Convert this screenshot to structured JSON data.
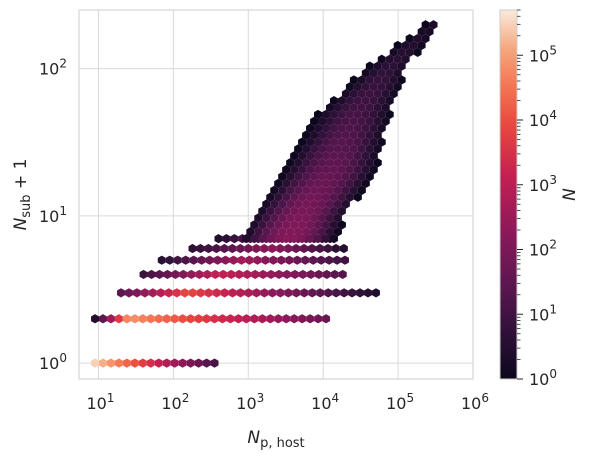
{
  "chart_data": {
    "type": "hexbin",
    "x_scale": "log",
    "y_scale": "log",
    "xlabel": "N_p, host",
    "ylabel": "N_sub + 1",
    "xlim": [
      5.5,
      1000000
    ],
    "ylim": [
      0.78,
      250
    ],
    "grid": true,
    "x_ticks": [
      {
        "value": 10,
        "base": "10",
        "exp": "1"
      },
      {
        "value": 100,
        "base": "10",
        "exp": "2"
      },
      {
        "value": 1000,
        "base": "10",
        "exp": "3"
      },
      {
        "value": 10000,
        "base": "10",
        "exp": "4"
      },
      {
        "value": 100000,
        "base": "10",
        "exp": "5"
      },
      {
        "value": 1000000,
        "base": "10",
        "exp": "6"
      }
    ],
    "y_ticks": [
      {
        "value": 1,
        "base": "10",
        "exp": "0"
      },
      {
        "value": 10,
        "base": "10",
        "exp": "1"
      },
      {
        "value": 100,
        "base": "10",
        "exp": "2"
      }
    ],
    "colorbar": {
      "label": "N",
      "scale": "log",
      "range": [
        1,
        500000
      ],
      "ticks": [
        {
          "value": 1,
          "base": "10",
          "exp": "0"
        },
        {
          "value": 10,
          "base": "10",
          "exp": "1"
        },
        {
          "value": 100,
          "base": "10",
          "exp": "2"
        },
        {
          "value": 1000,
          "base": "10",
          "exp": "3"
        },
        {
          "value": 10000,
          "base": "10",
          "exp": "4"
        },
        {
          "value": 100000,
          "base": "10",
          "exp": "5"
        }
      ],
      "colormap": "rocket"
    },
    "series": [
      {
        "y": 1,
        "x_from": 9,
        "x_to": 420,
        "n_start": 300000,
        "n_end": 8
      },
      {
        "y": 2,
        "x_from": 9,
        "x_to": 12000,
        "n_start": 3,
        "n_peak": 80000,
        "x_peak": 25,
        "n_end": 40
      },
      {
        "y": 3,
        "x_from": 20,
        "x_to": 60000,
        "n_start": 30,
        "n_peak": 8000,
        "x_peak": 150,
        "n_end": 2
      },
      {
        "y": 4,
        "x_from": 40,
        "x_to": 20000,
        "n_start": 8,
        "n_peak": 1500,
        "x_peak": 400,
        "n_end": 20
      },
      {
        "y": 5,
        "x_from": 70,
        "x_to": 22000,
        "n_start": 4,
        "n_peak": 400,
        "x_peak": 800,
        "n_end": 8
      },
      {
        "y": 6,
        "x_from": 180,
        "x_to": 20000,
        "n_start": 5,
        "n_peak": 200,
        "x_peak": 2000,
        "n_end": 3
      },
      {
        "y": 7,
        "x_from": 400,
        "x_to": 14000,
        "n_start": 3,
        "n_peak": 100,
        "x_peak": 3000,
        "n_end": 2
      }
    ],
    "envelope": {
      "y_min": 7,
      "y_max": 200,
      "lower_x": [
        [
          7,
          800
        ],
        [
          10,
          1200
        ],
        [
          20,
          3000
        ],
        [
          50,
          9000
        ],
        [
          100,
          40000
        ],
        [
          200,
          250000
        ]
      ],
      "upper_x": [
        [
          7,
          15000
        ],
        [
          10,
          20000
        ],
        [
          20,
          50000
        ],
        [
          50,
          80000
        ],
        [
          100,
          130000
        ],
        [
          200,
          350000
        ]
      ],
      "n_range": [
        1,
        150
      ]
    }
  }
}
